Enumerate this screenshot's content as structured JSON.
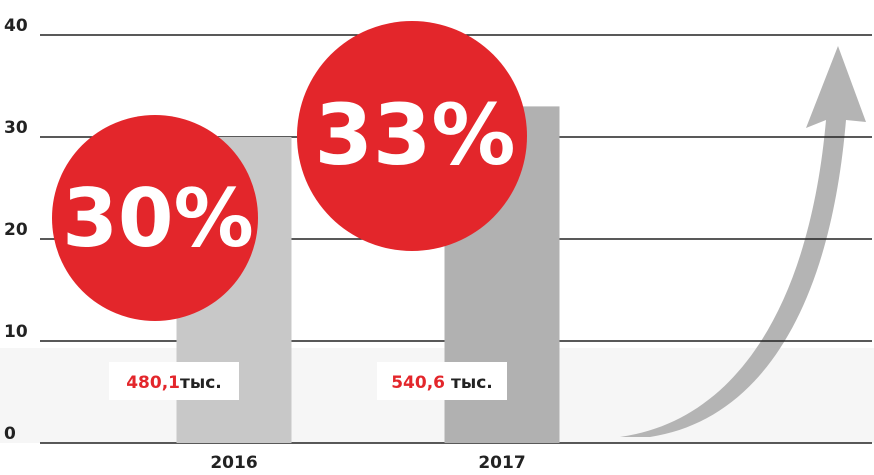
{
  "chart_data": {
    "type": "bar",
    "categories": [
      "2016",
      "2017"
    ],
    "values": [
      30,
      33
    ],
    "value_labels": [
      "30%",
      "33%"
    ],
    "colors": [
      "#c8c8c8",
      "#b1b1b1"
    ],
    "label_color": "#e3262b",
    "annotations": [
      {
        "number": "480,1",
        "unit": "тыс."
      },
      {
        "number": "540,6",
        "unit": "тыс."
      }
    ],
    "ylim": [
      0,
      40
    ],
    "yticks": [
      0,
      10,
      20,
      30,
      40
    ],
    "grid": true
  }
}
